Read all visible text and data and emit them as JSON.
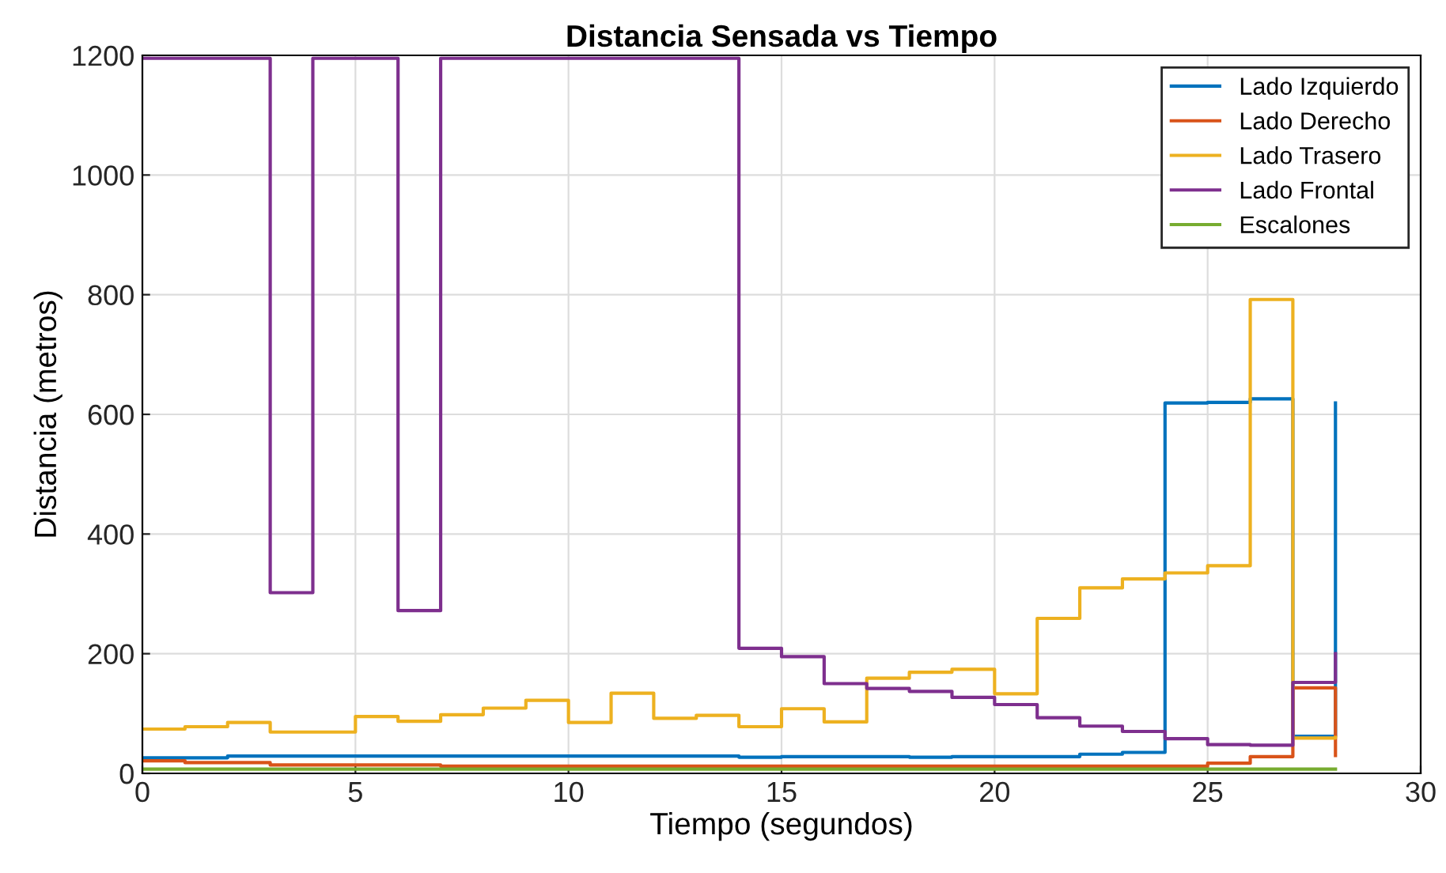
{
  "chart_data": {
    "type": "step",
    "title": "Distancia Sensada vs Tiempo",
    "xlabel": "Tiempo (segundos)",
    "ylabel": "Distancia (metros)",
    "x": [
      0,
      1,
      2,
      3,
      4,
      5,
      6,
      7,
      8,
      9,
      10,
      11,
      12,
      13,
      14,
      15,
      16,
      17,
      18,
      19,
      20,
      21,
      22,
      23,
      24,
      25,
      26,
      27,
      28
    ],
    "series": [
      {
        "name": "Lado Izquierdo",
        "color": "#0072bd",
        "values": [
          26,
          26,
          29,
          29,
          29,
          29,
          29,
          29,
          29,
          29,
          29,
          29,
          29,
          29,
          27,
          28,
          28,
          28,
          27,
          28,
          28,
          28,
          32,
          35,
          619,
          620,
          626,
          62,
          619
        ]
      },
      {
        "name": "Lado Derecho",
        "color": "#d95319",
        "values": [
          21,
          18,
          18,
          14,
          14,
          14,
          14,
          12,
          12,
          12,
          12,
          12,
          12,
          12,
          12,
          12,
          12,
          12,
          12,
          12,
          12,
          12,
          12,
          12,
          12,
          17,
          28,
          143,
          30
        ]
      },
      {
        "name": "Lado Trasero",
        "color": "#edb120",
        "values": [
          74,
          78,
          85,
          69,
          69,
          95,
          87,
          98,
          109,
          122,
          85,
          134,
          92,
          97,
          78,
          108,
          86,
          159,
          169,
          174,
          133,
          259,
          310,
          325,
          335,
          347,
          792,
          59,
          60
        ]
      },
      {
        "name": "Lado Frontal",
        "color": "#7e2f8e",
        "values": [
          1195,
          1195,
          1195,
          302,
          1195,
          1195,
          272,
          1195,
          1195,
          1195,
          1195,
          1195,
          1195,
          1195,
          209,
          195,
          150,
          142,
          137,
          127,
          115,
          93,
          79,
          70,
          58,
          48,
          47,
          152,
          200
        ]
      },
      {
        "name": "Escalones",
        "color": "#77ac30",
        "values": [
          7,
          7,
          7,
          7,
          7,
          7,
          7,
          7,
          7,
          7,
          7,
          7,
          7,
          7,
          7,
          7,
          7,
          7,
          7,
          7,
          7,
          7,
          7,
          7,
          7,
          7,
          7,
          7,
          7
        ]
      }
    ],
    "xlim": [
      0,
      30
    ],
    "xticks": [
      0,
      5,
      10,
      15,
      20,
      25,
      30
    ],
    "ylim": [
      0,
      1200
    ],
    "yticks": [
      0,
      200,
      400,
      600,
      800,
      1000,
      1200
    ],
    "grid": true,
    "legend": "top right"
  }
}
